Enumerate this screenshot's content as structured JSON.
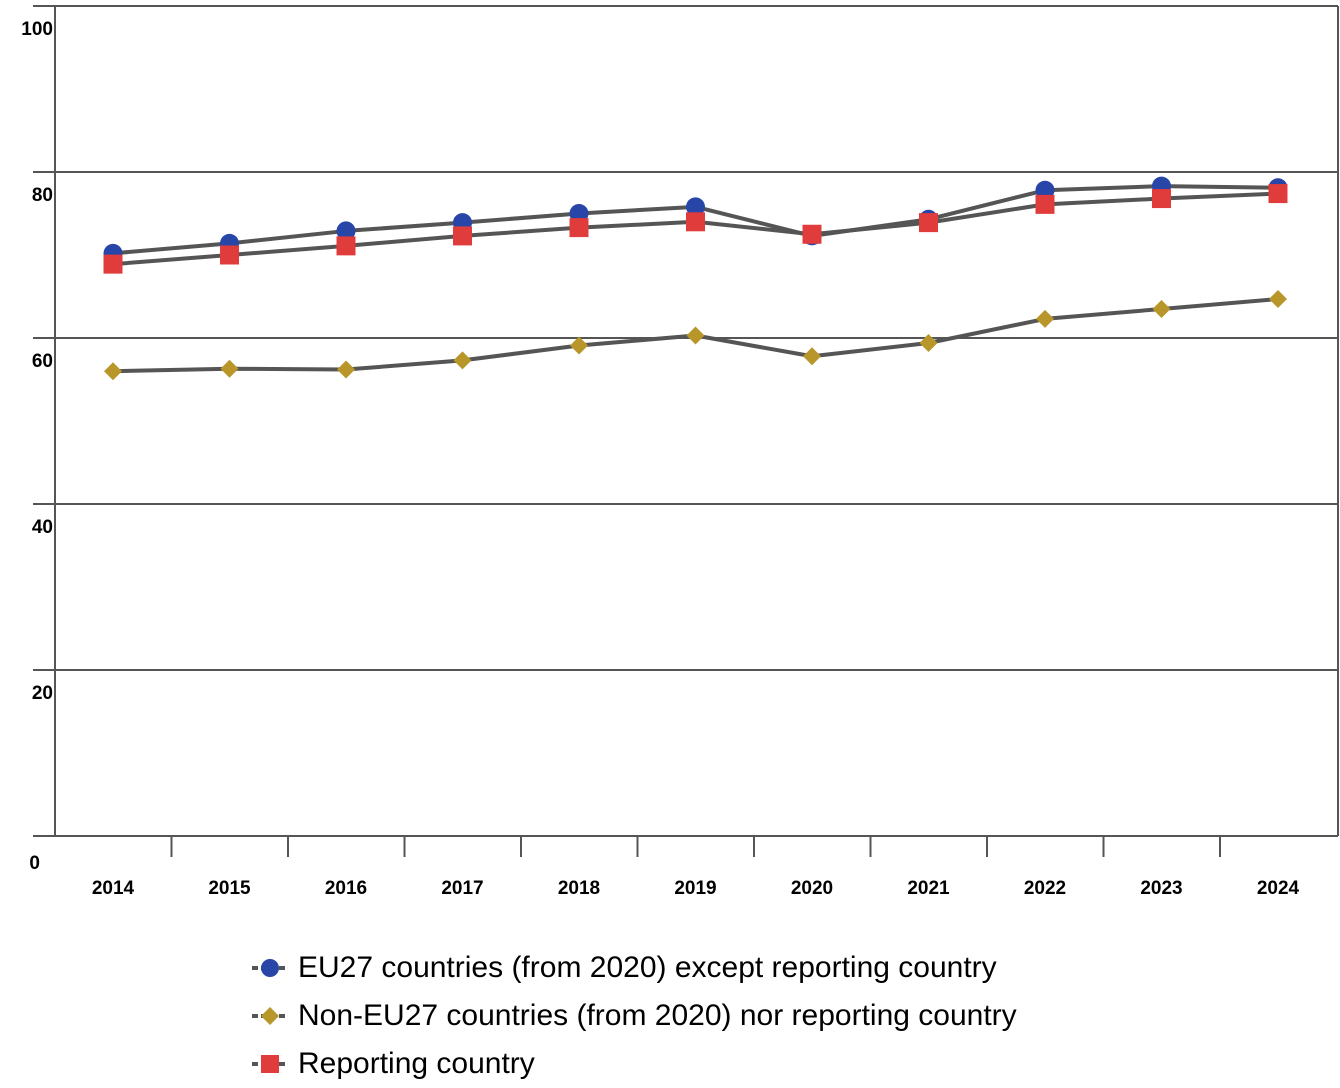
{
  "chart_data": {
    "type": "line",
    "title": "",
    "xlabel": "",
    "ylabel": "",
    "categories": [
      "2014",
      "2015",
      "2016",
      "2017",
      "2018",
      "2019",
      "2020",
      "2021",
      "2022",
      "2023",
      "2024"
    ],
    "ylim": [
      0,
      100
    ],
    "yticks": [
      0,
      20,
      40,
      60,
      80,
      100
    ],
    "grid": true,
    "legend_position": "bottom",
    "series": [
      {
        "name": "EU27 countries (from 2020) except reporting country",
        "marker": "circle",
        "color": "#2845a8",
        "values": [
          70.2,
          71.4,
          72.9,
          73.9,
          75.0,
          75.8,
          72.3,
          74.3,
          77.8,
          78.3,
          78.1
        ]
      },
      {
        "name": "Non-EU27 countries (from 2020) nor reporting country",
        "marker": "diamond",
        "color": "#b8962a",
        "values": [
          56.0,
          56.3,
          56.2,
          57.3,
          59.1,
          60.3,
          57.8,
          59.4,
          62.3,
          63.5,
          64.7
        ]
      },
      {
        "name": "Reporting country",
        "marker": "square",
        "color": "#e03c3c",
        "values": [
          68.9,
          70.0,
          71.1,
          72.3,
          73.3,
          74.0,
          72.5,
          73.9,
          76.1,
          76.8,
          77.4
        ]
      }
    ],
    "line_color": "#555555",
    "grid_color": "#555555"
  }
}
